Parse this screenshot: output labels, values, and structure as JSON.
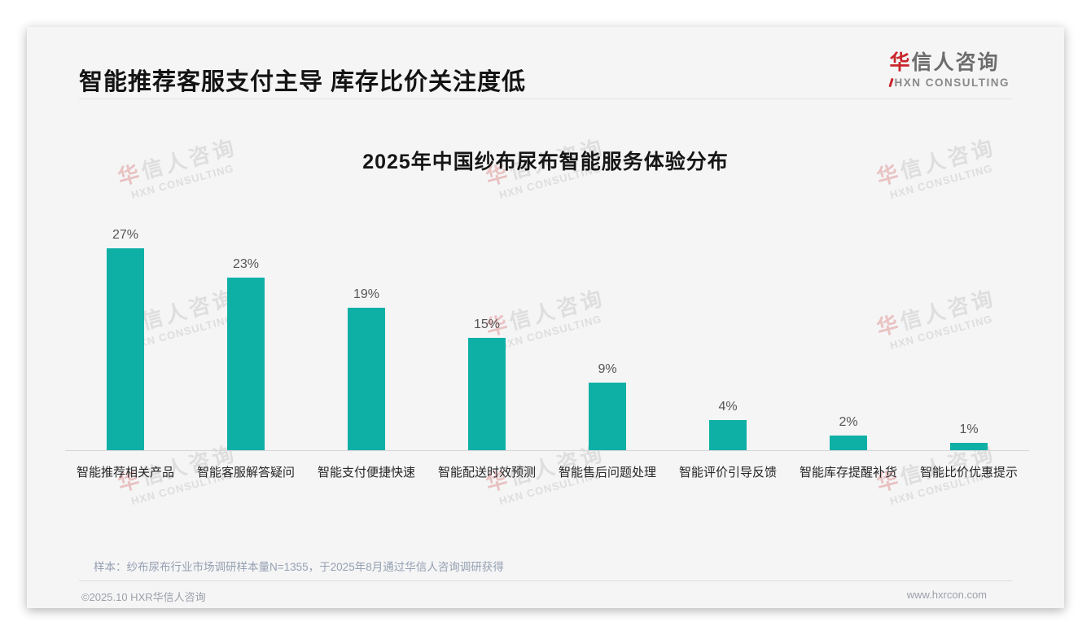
{
  "header": {
    "title": "智能推荐客服支付主导 库存比价关注度低"
  },
  "logo": {
    "zh_accent": "华",
    "zh_rest": "信人咨询",
    "en": "HXN CONSULTING",
    "accent_color": "#c9252c"
  },
  "chart_data": {
    "type": "bar",
    "title": "2025年中国纱布尿布智能服务体验分布",
    "categories": [
      "智能推荐相关产品",
      "智能客服解答疑问",
      "智能支付便捷快速",
      "智能配送时效预测",
      "智能售后问题处理",
      "智能评价引导反馈",
      "智能库存提醒补货",
      "智能比价优惠提示"
    ],
    "values": [
      27,
      23,
      19,
      15,
      9,
      4,
      2,
      1
    ],
    "unit": "%",
    "bar_color": "#0eb0a6",
    "ylim": [
      0,
      30
    ],
    "grid": false,
    "legend": null,
    "xlabel": "",
    "ylabel": ""
  },
  "note": "样本：纱布尿布行业市场调研样本量N=1355，于2025年8月通过华信人咨询调研获得",
  "footer": {
    "left": "©2025.10 HXR华信人咨询",
    "right": "www.hxrcon.com"
  },
  "watermark": {
    "zh_accent": "华",
    "zh_rest": "信人咨询",
    "en": "HXN CONSULTING"
  }
}
